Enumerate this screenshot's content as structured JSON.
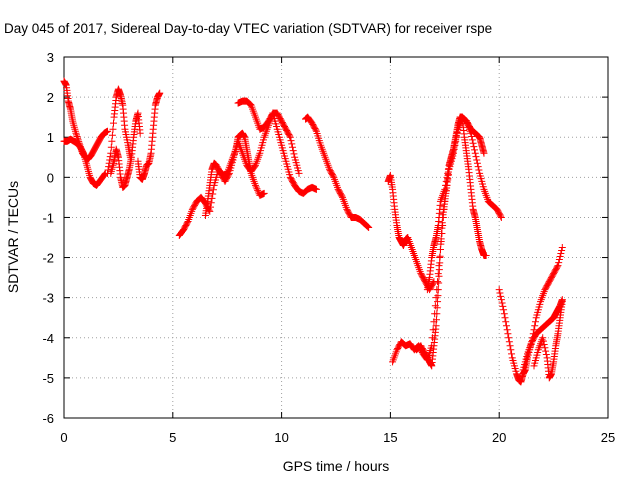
{
  "chart_data": {
    "type": "scatter",
    "title": "Day 045 of 2017, Sidereal Day-to-day VTEC variation (SDTVAR) for receiver rspe",
    "xlabel": "GPS time / hours",
    "ylabel": "SDTVAR / TECUs",
    "xlim": [
      0,
      25
    ],
    "ylim": [
      -6,
      3
    ],
    "xticks": [
      "0",
      "5",
      "10",
      "15",
      "20",
      "25"
    ],
    "yticks": [
      "-6",
      "-5",
      "-4",
      "-3",
      "-2",
      "-1",
      "0",
      "1",
      "2",
      "3"
    ],
    "grid": true,
    "marker": "+",
    "color": "#ff0000",
    "series": [
      {
        "x": [
          0.0,
          0.1,
          0.2,
          0.3,
          0.4,
          0.55,
          0.7,
          0.85,
          1.0,
          1.1,
          1.25,
          1.4,
          1.55,
          1.7,
          1.85,
          2.0
        ],
        "y": [
          2.4,
          2.3,
          1.9,
          1.7,
          1.4,
          1.1,
          0.85,
          0.6,
          0.5,
          0.45,
          0.55,
          0.7,
          0.85,
          1.0,
          1.1,
          1.15
        ]
      },
      {
        "x": [
          0.0,
          0.15,
          0.3,
          0.45,
          0.6,
          0.75,
          0.9,
          1.05,
          1.2,
          1.35,
          1.5,
          1.7,
          1.9
        ],
        "y": [
          0.9,
          0.9,
          0.95,
          0.9,
          0.85,
          0.75,
          0.6,
          0.3,
          0.0,
          -0.15,
          -0.2,
          -0.05,
          0.1
        ]
      },
      {
        "x": [
          2.0,
          2.15,
          2.3,
          2.4,
          2.5,
          2.6,
          2.7,
          2.8,
          2.95,
          3.05
        ],
        "y": [
          0.1,
          0.6,
          1.5,
          2.0,
          2.2,
          2.05,
          1.8,
          1.2,
          0.8,
          0.5
        ]
      },
      {
        "x": [
          2.15,
          2.3,
          2.4,
          2.5,
          2.6,
          2.7,
          2.8,
          2.9,
          3.0,
          3.1,
          3.2,
          3.3,
          3.4,
          3.5
        ],
        "y": [
          0.1,
          0.4,
          0.7,
          0.5,
          0.0,
          -0.25,
          -0.2,
          0.0,
          0.2,
          0.5,
          1.0,
          1.4,
          1.6,
          1.1
        ]
      },
      {
        "x": [
          3.4,
          3.5,
          3.6,
          3.7,
          3.8,
          3.9,
          4.0,
          4.1,
          4.2,
          4.3,
          4.4
        ],
        "y": [
          0.4,
          0.0,
          -0.05,
          0.1,
          0.3,
          0.35,
          0.6,
          1.2,
          1.8,
          2.0,
          2.1
        ]
      },
      {
        "x": [
          5.3,
          5.5,
          5.7,
          5.9,
          6.1,
          6.3,
          6.5,
          6.7,
          6.9,
          7.1,
          7.3,
          7.5,
          7.7,
          7.9,
          8.0,
          8.1,
          8.2,
          8.3,
          8.4,
          8.5,
          8.6,
          8.8,
          9.0,
          9.2
        ],
        "y": [
          -1.45,
          -1.3,
          -1.1,
          -0.8,
          -0.6,
          -0.5,
          -0.65,
          -0.85,
          -0.2,
          0.2,
          0.05,
          0.1,
          0.4,
          0.7,
          1.0,
          1.05,
          1.1,
          1.0,
          0.7,
          0.4,
          0.1,
          -0.2,
          -0.45,
          -0.4
        ]
      },
      {
        "x": [
          6.5,
          6.6,
          6.7,
          6.8,
          6.9,
          7.0,
          7.2,
          7.4,
          7.6,
          7.8,
          8.0,
          8.2,
          8.4,
          8.6,
          8.8,
          9.0,
          9.2,
          9.4,
          9.6,
          9.8,
          10.0,
          10.2,
          10.4,
          10.6,
          10.8,
          11.0,
          11.2,
          11.4,
          11.6
        ],
        "y": [
          -0.95,
          -0.6,
          -0.2,
          0.2,
          0.35,
          0.3,
          0.1,
          -0.1,
          0.1,
          0.5,
          0.9,
          0.6,
          0.3,
          0.15,
          0.3,
          0.6,
          1.0,
          1.3,
          1.6,
          1.2,
          0.8,
          0.4,
          0.0,
          -0.2,
          -0.35,
          -0.4,
          -0.3,
          -0.25,
          -0.3
        ]
      },
      {
        "x": [
          8.0,
          8.2,
          8.4,
          8.6,
          8.8,
          9.0,
          9.2,
          9.4,
          9.6,
          9.8,
          10.0,
          10.2,
          10.4,
          10.6,
          10.8
        ],
        "y": [
          1.85,
          1.9,
          1.9,
          1.8,
          1.5,
          1.2,
          1.25,
          1.4,
          1.6,
          1.6,
          1.4,
          1.2,
          1.0,
          0.5,
          0.1
        ]
      },
      {
        "x": [
          11.1,
          11.2,
          11.4,
          11.6,
          11.8,
          12.0,
          12.2,
          12.4,
          12.6,
          12.8,
          13.0,
          13.2,
          13.4,
          13.6,
          13.8,
          14.0
        ],
        "y": [
          1.45,
          1.5,
          1.35,
          1.15,
          0.8,
          0.5,
          0.2,
          0.0,
          -0.3,
          -0.5,
          -0.8,
          -1.0,
          -1.0,
          -1.05,
          -1.15,
          -1.25
        ]
      },
      {
        "x": [
          14.9,
          15.0,
          15.1,
          15.2,
          15.3,
          15.4,
          15.5,
          15.6,
          15.7,
          15.8,
          16.0,
          16.2,
          16.4,
          16.6,
          16.8,
          17.0
        ],
        "y": [
          -0.1,
          0.05,
          -0.3,
          -0.8,
          -1.2,
          -1.5,
          -1.6,
          -1.7,
          -1.55,
          -1.5,
          -1.8,
          -2.1,
          -2.4,
          -2.6,
          -2.8,
          -2.6
        ]
      },
      {
        "x": [
          15.1,
          15.3,
          15.5,
          15.7,
          15.9,
          16.1,
          16.3,
          16.5,
          16.7,
          16.9,
          17.1,
          17.3,
          17.5,
          17.7,
          17.9,
          18.1,
          18.3,
          18.5,
          18.7,
          18.9,
          19.1,
          19.3,
          19.5,
          19.7,
          19.9,
          20.1
        ],
        "y": [
          -4.6,
          -4.3,
          -4.1,
          -4.2,
          -4.15,
          -4.3,
          -4.2,
          -4.4,
          -4.55,
          -4.2,
          -3.0,
          -1.8,
          -0.6,
          0.2,
          0.6,
          1.2,
          1.5,
          1.4,
          1.1,
          0.6,
          0.1,
          -0.3,
          -0.6,
          -0.7,
          -0.8,
          -1.0
        ]
      },
      {
        "x": [
          16.2,
          16.4,
          16.6,
          16.8,
          16.9,
          17.0,
          17.1,
          17.2,
          17.3,
          17.4,
          17.5,
          17.6,
          17.7,
          17.8,
          17.9,
          18.0,
          18.1,
          18.2,
          18.3,
          18.4,
          18.5,
          18.6,
          18.7,
          18.8,
          18.9,
          19.0,
          19.1,
          19.2,
          19.3,
          19.4
        ],
        "y": [
          -4.3,
          -4.2,
          -4.4,
          -4.6,
          -4.7,
          -4.2,
          -3.7,
          -2.8,
          -1.8,
          -1.0,
          -0.6,
          -0.2,
          0.3,
          0.5,
          0.7,
          1.0,
          1.3,
          1.5,
          1.5,
          1.0,
          0.6,
          0.2,
          -0.3,
          -0.8,
          -1.0,
          -1.3,
          -1.6,
          -1.8,
          -1.95,
          -1.95
        ]
      },
      {
        "x": [
          16.7,
          16.8,
          16.9,
          17.0,
          17.1,
          17.2,
          17.3,
          17.5,
          17.7,
          17.9,
          18.1,
          18.3,
          18.5,
          18.7,
          18.9,
          19.1,
          19.2,
          19.3
        ],
        "y": [
          -2.8,
          -2.5,
          -2.0,
          -1.7,
          -1.5,
          -1.2,
          -0.6,
          -0.3,
          0.3,
          0.7,
          1.2,
          1.5,
          1.4,
          1.2,
          1.1,
          1.0,
          0.8,
          0.6
        ]
      },
      {
        "x": [
          20.0,
          20.2,
          20.4,
          20.6,
          20.8,
          20.9,
          21.0,
          21.1,
          21.2,
          21.3,
          21.5,
          21.7,
          21.9,
          22.1,
          22.3,
          22.5,
          22.7,
          22.9
        ],
        "y": [
          -2.8,
          -3.3,
          -3.9,
          -4.5,
          -4.9,
          -5.05,
          -5.1,
          -4.9,
          -4.8,
          -4.5,
          -4.1,
          -3.5,
          -3.1,
          -2.8,
          -2.6,
          -2.4,
          -2.2,
          -1.75
        ]
      },
      {
        "x": [
          21.1,
          21.3,
          21.5,
          21.7,
          21.9,
          22.1,
          22.3,
          22.4,
          22.5,
          22.6,
          22.7,
          22.8,
          22.9
        ],
        "y": [
          -4.8,
          -4.4,
          -4.1,
          -3.9,
          -3.8,
          -3.7,
          -3.6,
          -3.55,
          -3.5,
          -3.4,
          -3.3,
          -3.2,
          -3.05
        ]
      },
      {
        "x": [
          21.6,
          21.8,
          22.0,
          22.2,
          22.3,
          22.4,
          22.5,
          22.6,
          22.7,
          22.8,
          22.9
        ],
        "y": [
          -4.7,
          -4.3,
          -4.0,
          -4.5,
          -5.0,
          -4.9,
          -4.6,
          -4.2,
          -3.9,
          -3.5,
          -3.1
        ]
      }
    ]
  }
}
